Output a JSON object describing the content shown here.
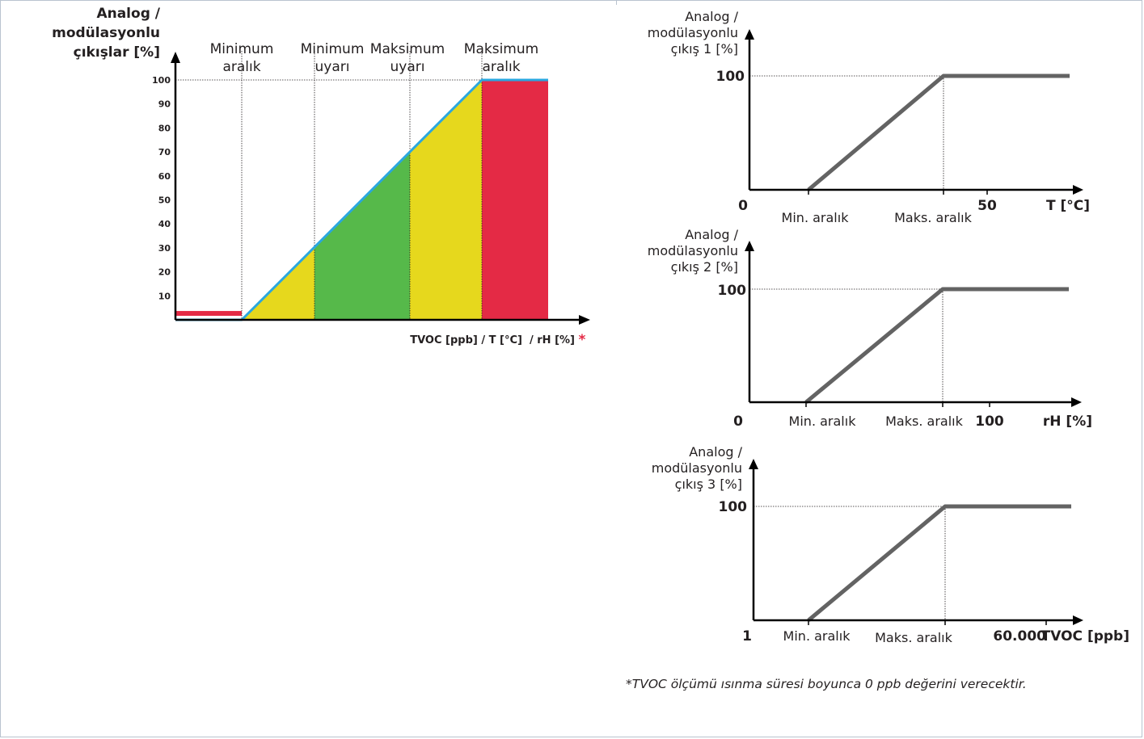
{
  "colors": {
    "red": "#e42a45",
    "yellow": "#e6d81d",
    "green": "#56b94a",
    "line_blue": "#2aa7df",
    "ramp_gray": "#636363",
    "axis": "#000000",
    "asterisk": "#e42a45"
  },
  "main_chart": {
    "ylabel": [
      "Analog /",
      "modülasyonlu",
      "çıkışlar [%]"
    ],
    "xlabel": "TVOC [ppb] / T [°C]  / rH [%]",
    "asterisk": "*",
    "zones": [
      [
        "Minimum",
        "aralık"
      ],
      [
        "Minimum",
        "uyarı"
      ],
      [
        "Maksimum",
        "uyarı"
      ],
      [
        "Maksimum",
        "aralık"
      ]
    ]
  },
  "footnote": "*TVOC ölçümü ısınma süresi boyunca 0 ppb değerini verecektir.",
  "chart_data": [
    {
      "type": "area",
      "ylabel": "Analog / modülasyonlu çıkışlar [%]",
      "xlabel": "TVOC [ppb] / T [°C]  / rH [%]",
      "ylim": [
        0,
        100
      ],
      "yticks": [
        10,
        20,
        30,
        40,
        50,
        60,
        70,
        80,
        90,
        100
      ],
      "zone_boundaries": [
        0,
        1,
        2,
        3,
        4,
        5
      ],
      "zones": [
        {
          "name": "Minimum aralık",
          "from": 0,
          "to": 1,
          "color": "red",
          "level": 2
        },
        {
          "name": "Minimum uyarı",
          "from": 1,
          "to": 2,
          "color": "yellow"
        },
        {
          "name": "Maksimum uyarı",
          "from": 2,
          "to": 3.3,
          "color": "green"
        },
        {
          "name": "Maksimum aralık",
          "from": 3.3,
          "to": 4.3,
          "color": "yellow"
        },
        {
          "name": "",
          "from": 4.3,
          "to": 5.2,
          "color": "red",
          "level": 100
        }
      ],
      "series": [
        {
          "x": [
            0,
            1,
            4.3,
            5.2
          ],
          "y": [
            0,
            0,
            100,
            100
          ]
        }
      ],
      "grid": "vertical dotted at zone boundaries; horizontal dotted at 100"
    },
    {
      "type": "line",
      "ylabel": [
        "Analog /",
        "modülasyonlu",
        "çıkış 1 [%]"
      ],
      "xlabel": "T [°C]",
      "x_ticks": [
        "0",
        "50"
      ],
      "y_ticks": [
        "100"
      ],
      "ramp_labels": [
        "Min. aralık",
        "Maks. aralık"
      ],
      "series": [
        {
          "x": [
            0.47,
            1.67,
            2.88
          ],
          "y": [
            0,
            100,
            100
          ]
        }
      ]
    },
    {
      "type": "line",
      "ylabel": [
        "Analog /",
        "modülasyonlu",
        "çıkış 2 [%]"
      ],
      "xlabel": "rH [%]",
      "x_ticks": [
        "0",
        "100"
      ],
      "y_ticks": [
        "100"
      ],
      "ramp_labels": [
        "Min. aralık",
        "Maks. aralık"
      ],
      "series": [
        {
          "x": [
            0.47,
            1.67,
            2.88
          ],
          "y": [
            0,
            100,
            100
          ]
        }
      ]
    },
    {
      "type": "line",
      "ylabel": [
        "Analog /",
        "modülasyonlu",
        "çıkış 3 [%]"
      ],
      "xlabel": "TVOC [ppb]",
      "x_ticks": [
        "1",
        "60.000"
      ],
      "y_ticks": [
        "100"
      ],
      "ramp_labels": [
        "Min. aralık",
        "Maks. aralık"
      ],
      "series": [
        {
          "x": [
            0.47,
            1.67,
            2.88
          ],
          "y": [
            0,
            100,
            100
          ]
        }
      ]
    }
  ]
}
